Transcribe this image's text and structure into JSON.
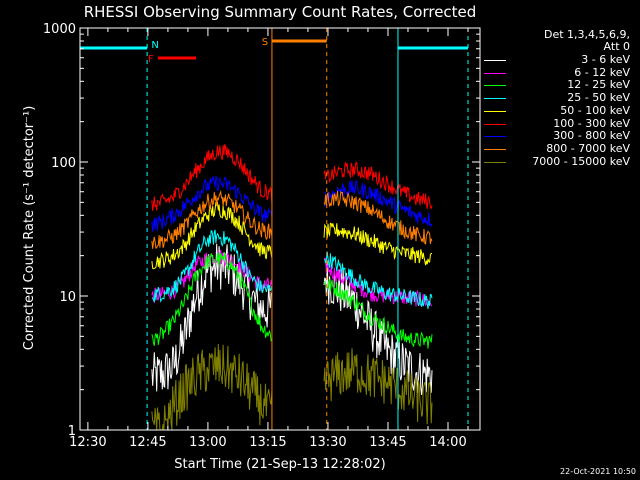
{
  "chart_data": {
    "type": "line",
    "title": "RHESSI Observing Summary Count Rates, Corrected",
    "xlabel": "Start Time (21-Sep-13 12:28:02)",
    "ylabel": "Corrected Count Rate (s⁻¹ detector⁻¹)",
    "x_ticks": [
      "12:30",
      "12:45",
      "13:00",
      "13:15",
      "13:30",
      "13:45",
      "14:00"
    ],
    "x_tick_minutes": [
      30,
      45,
      60,
      75,
      90,
      105,
      120
    ],
    "x_range_minutes": [
      28.03,
      128.0
    ],
    "y_scale": "log",
    "y_ticks": [
      "1",
      "10",
      "100",
      "1000"
    ],
    "ylim": [
      1,
      1000
    ],
    "legend_header": [
      "Det 1,3,4,5,6,9,",
      "Att 0"
    ],
    "series": [
      {
        "name": "3 - 6 keV",
        "color": "#ffffff",
        "seg1": [
          2.5,
          2.6,
          3,
          5,
          10,
          15,
          17,
          16,
          13,
          10,
          8,
          8
        ],
        "seg2": [
          14,
          11,
          9,
          6,
          4,
          3.2,
          2.7,
          2.6
        ]
      },
      {
        "name": "6 - 12 keV",
        "color": "#ff00ff",
        "seg1": [
          10,
          10.3,
          11,
          13,
          17,
          19,
          20,
          19,
          17,
          14,
          12,
          12
        ],
        "seg2": [
          17,
          14,
          12,
          10.5,
          10,
          9.8,
          9.5,
          9
        ]
      },
      {
        "name": "12 - 25 keV",
        "color": "#00ff00",
        "seg1": [
          4.6,
          5.2,
          6.5,
          9,
          14,
          18,
          19,
          18,
          14,
          9,
          6,
          5
        ],
        "seg2": [
          12.5,
          11,
          9,
          7,
          6,
          5,
          4.7,
          4.6
        ]
      },
      {
        "name": "25 - 50 keV",
        "color": "#00ffff",
        "seg1": [
          10.2,
          10.5,
          11.5,
          14,
          20,
          26,
          28,
          26,
          20,
          14,
          11.5,
          11
        ],
        "seg2": [
          20,
          16.5,
          13.5,
          11.5,
          10.5,
          10,
          9.5,
          9
        ]
      },
      {
        "name": "50 - 100 keV",
        "color": "#ffff00",
        "seg1": [
          18,
          18.5,
          20,
          24,
          32,
          40,
          45,
          42,
          35,
          27,
          22,
          21
        ],
        "seg2": [
          30,
          31,
          29,
          26,
          23,
          21,
          20,
          19
        ]
      },
      {
        "name": "100 - 300 keV",
        "color": "#ff0000",
        "seg1": [
          48,
          50,
          55,
          67,
          85,
          105,
          120,
          118,
          100,
          78,
          62,
          57
        ],
        "seg2": [
          75,
          85,
          88,
          82,
          70,
          60,
          53,
          50
        ]
      },
      {
        "name": "300 - 800 keV",
        "color": "#0000ff",
        "seg1": [
          34,
          36,
          40,
          47,
          57,
          66,
          70,
          67,
          58,
          48,
          41,
          39
        ],
        "seg2": [
          53,
          62,
          64,
          59,
          52,
          45,
          40,
          37
        ]
      },
      {
        "name": "800 - 7000 keV",
        "color": "#ff7f00",
        "seg1": [
          25,
          26,
          28,
          33,
          42,
          50,
          54,
          51,
          44,
          36,
          31,
          30
        ],
        "seg2": [
          52,
          53,
          50,
          44,
          37,
          32,
          28.5,
          27
        ]
      },
      {
        "name": "7000 - 15000 keV",
        "color": "#808000",
        "seg1": [
          1,
          1,
          1.5,
          2,
          2.5,
          2.8,
          3,
          2.8,
          2.5,
          2,
          1.6,
          1.3
        ],
        "seg2": [
          2.3,
          2.6,
          2.8,
          2.5,
          2.3,
          2,
          1.7,
          1.5
        ]
      }
    ],
    "data_gap_minutes": [
      46,
      76,
      89,
      116
    ],
    "flags": [
      {
        "label": "N",
        "color": "#00ffff",
        "intervals": [
          [
            28.03,
            44.8
          ],
          [
            107.5,
            125.0
          ]
        ]
      },
      {
        "label": "F",
        "color": "#ff0000",
        "intervals": [
          [
            47.5,
            57.0
          ]
        ]
      },
      {
        "label": "S",
        "color": "#ff7f00",
        "intervals": [
          [
            76.0,
            89.7
          ]
        ]
      }
    ],
    "vlines": [
      {
        "minute": 44.8,
        "color": "#00ffff",
        "style": "dashed"
      },
      {
        "minute": 76.0,
        "color": "#ff7f00",
        "style": "solid"
      },
      {
        "minute": 89.7,
        "color": "#ff7f00",
        "style": "dashed"
      },
      {
        "minute": 107.5,
        "color": "#00ffff",
        "style": "solid"
      },
      {
        "minute": 125.0,
        "color": "#00ffff",
        "style": "dashed"
      }
    ]
  },
  "footer_date": "22-Oct-2021 10:50"
}
